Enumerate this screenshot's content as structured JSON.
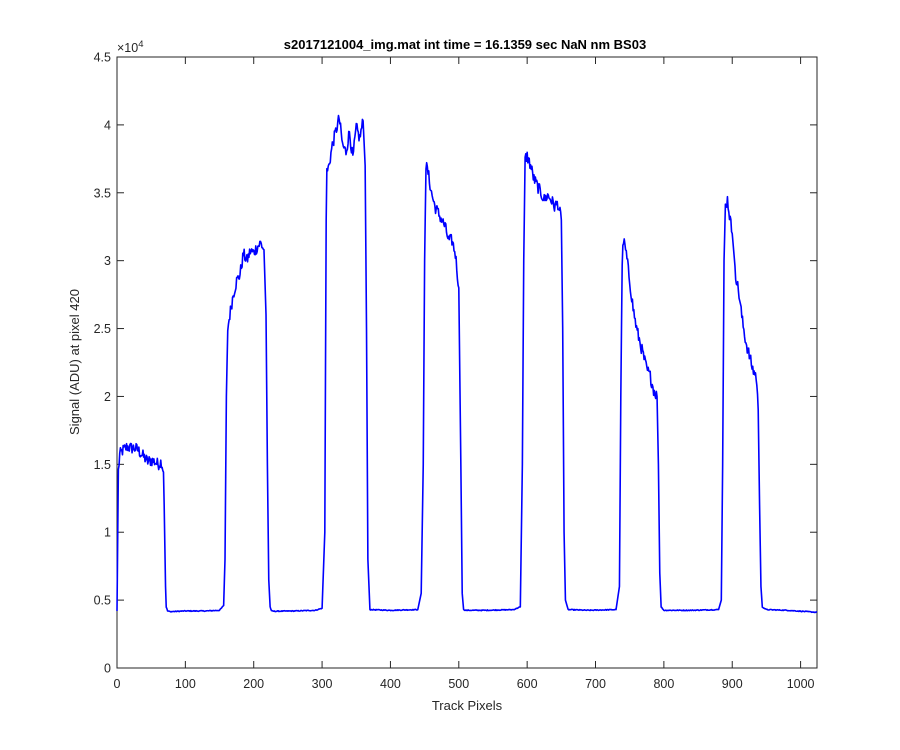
{
  "chart_data": {
    "type": "line",
    "title": "s2017121004_img.mat int time = 16.1359 sec  NaN nm BS03",
    "xlabel": "Track Pixels",
    "ylabel": "Signal (ADU) at pixel 420",
    "xlim": [
      0,
      1024
    ],
    "ylim": [
      0,
      45000
    ],
    "x_ticks": [
      "0",
      "100",
      "200",
      "300",
      "400",
      "500",
      "600",
      "700",
      "800",
      "900",
      "1000"
    ],
    "y_ticks": [
      "0",
      "0.5",
      "1",
      "1.5",
      "2",
      "2.5",
      "3",
      "3.5",
      "4",
      "4.5"
    ],
    "y_exponent": {
      "base": "×10",
      "power": "4"
    },
    "grid": false,
    "legend": "none",
    "line_color": "#0000ff",
    "series": [
      {
        "x": [
          0,
          2,
          4,
          8,
          15,
          20,
          25,
          30,
          35,
          40,
          45,
          50,
          55,
          60,
          65,
          68,
          69,
          70,
          71,
          72,
          74,
          78,
          100,
          130,
          150,
          156,
          158,
          160,
          162,
          165,
          170,
          175,
          180,
          185,
          190,
          195,
          200,
          205,
          210,
          215,
          218,
          220,
          222,
          224,
          226,
          230,
          260,
          290,
          300,
          304,
          305,
          306,
          307,
          310,
          315,
          320,
          325,
          330,
          335,
          340,
          345,
          350,
          355,
          360,
          363,
          365,
          367,
          370,
          400,
          440,
          445,
          448,
          450,
          452,
          455,
          460,
          465,
          470,
          475,
          480,
          485,
          490,
          495,
          500,
          503,
          505,
          507,
          510,
          540,
          580,
          590,
          593,
          595,
          597,
          600,
          605,
          610,
          615,
          620,
          625,
          630,
          635,
          640,
          645,
          650,
          652,
          654,
          656,
          660,
          690,
          730,
          735,
          737,
          739,
          741,
          745,
          750,
          755,
          760,
          765,
          770,
          775,
          780,
          785,
          790,
          792,
          794,
          796,
          800,
          840,
          880,
          884,
          886,
          888,
          890,
          893,
          897,
          900,
          905,
          910,
          915,
          920,
          925,
          930,
          935,
          938,
          940,
          942,
          944,
          950,
          980,
          1010,
          1024
        ],
        "y": [
          4200,
          14500,
          15700,
          16000,
          16300,
          16200,
          16200,
          16100,
          15800,
          15500,
          15200,
          15300,
          15200,
          15000,
          15200,
          14500,
          12000,
          9000,
          6000,
          4500,
          4200,
          4150,
          4200,
          4200,
          4250,
          4600,
          8000,
          20000,
          25000,
          26000,
          27500,
          28500,
          29000,
          30500,
          30000,
          30700,
          30600,
          31000,
          31300,
          30800,
          26000,
          15000,
          6500,
          4500,
          4200,
          4180,
          4200,
          4250,
          4400,
          10000,
          22000,
          33000,
          36500,
          37000,
          38500,
          39500,
          40500,
          38500,
          38000,
          39500,
          37500,
          39800,
          39000,
          40300,
          37000,
          25000,
          8000,
          4300,
          4250,
          4300,
          5500,
          15000,
          30000,
          37000,
          36500,
          35000,
          34000,
          33500,
          33000,
          32500,
          31500,
          31500,
          30500,
          28000,
          15000,
          5500,
          4300,
          4250,
          4250,
          4300,
          4500,
          15000,
          30000,
          37500,
          37700,
          37000,
          36000,
          35500,
          35000,
          34500,
          34800,
          34500,
          34000,
          34200,
          33000,
          25000,
          10000,
          5000,
          4300,
          4250,
          4300,
          6000,
          20000,
          30000,
          31500,
          30500,
          28500,
          26500,
          25000,
          24000,
          23000,
          22000,
          21500,
          20500,
          20000,
          15000,
          7000,
          4500,
          4250,
          4250,
          4300,
          5000,
          15000,
          30000,
          34000,
          34500,
          33000,
          32000,
          29000,
          27500,
          25500,
          24000,
          23000,
          22000,
          21500,
          19000,
          12000,
          6000,
          4500,
          4300,
          4250,
          4150,
          4100
        ]
      }
    ]
  }
}
